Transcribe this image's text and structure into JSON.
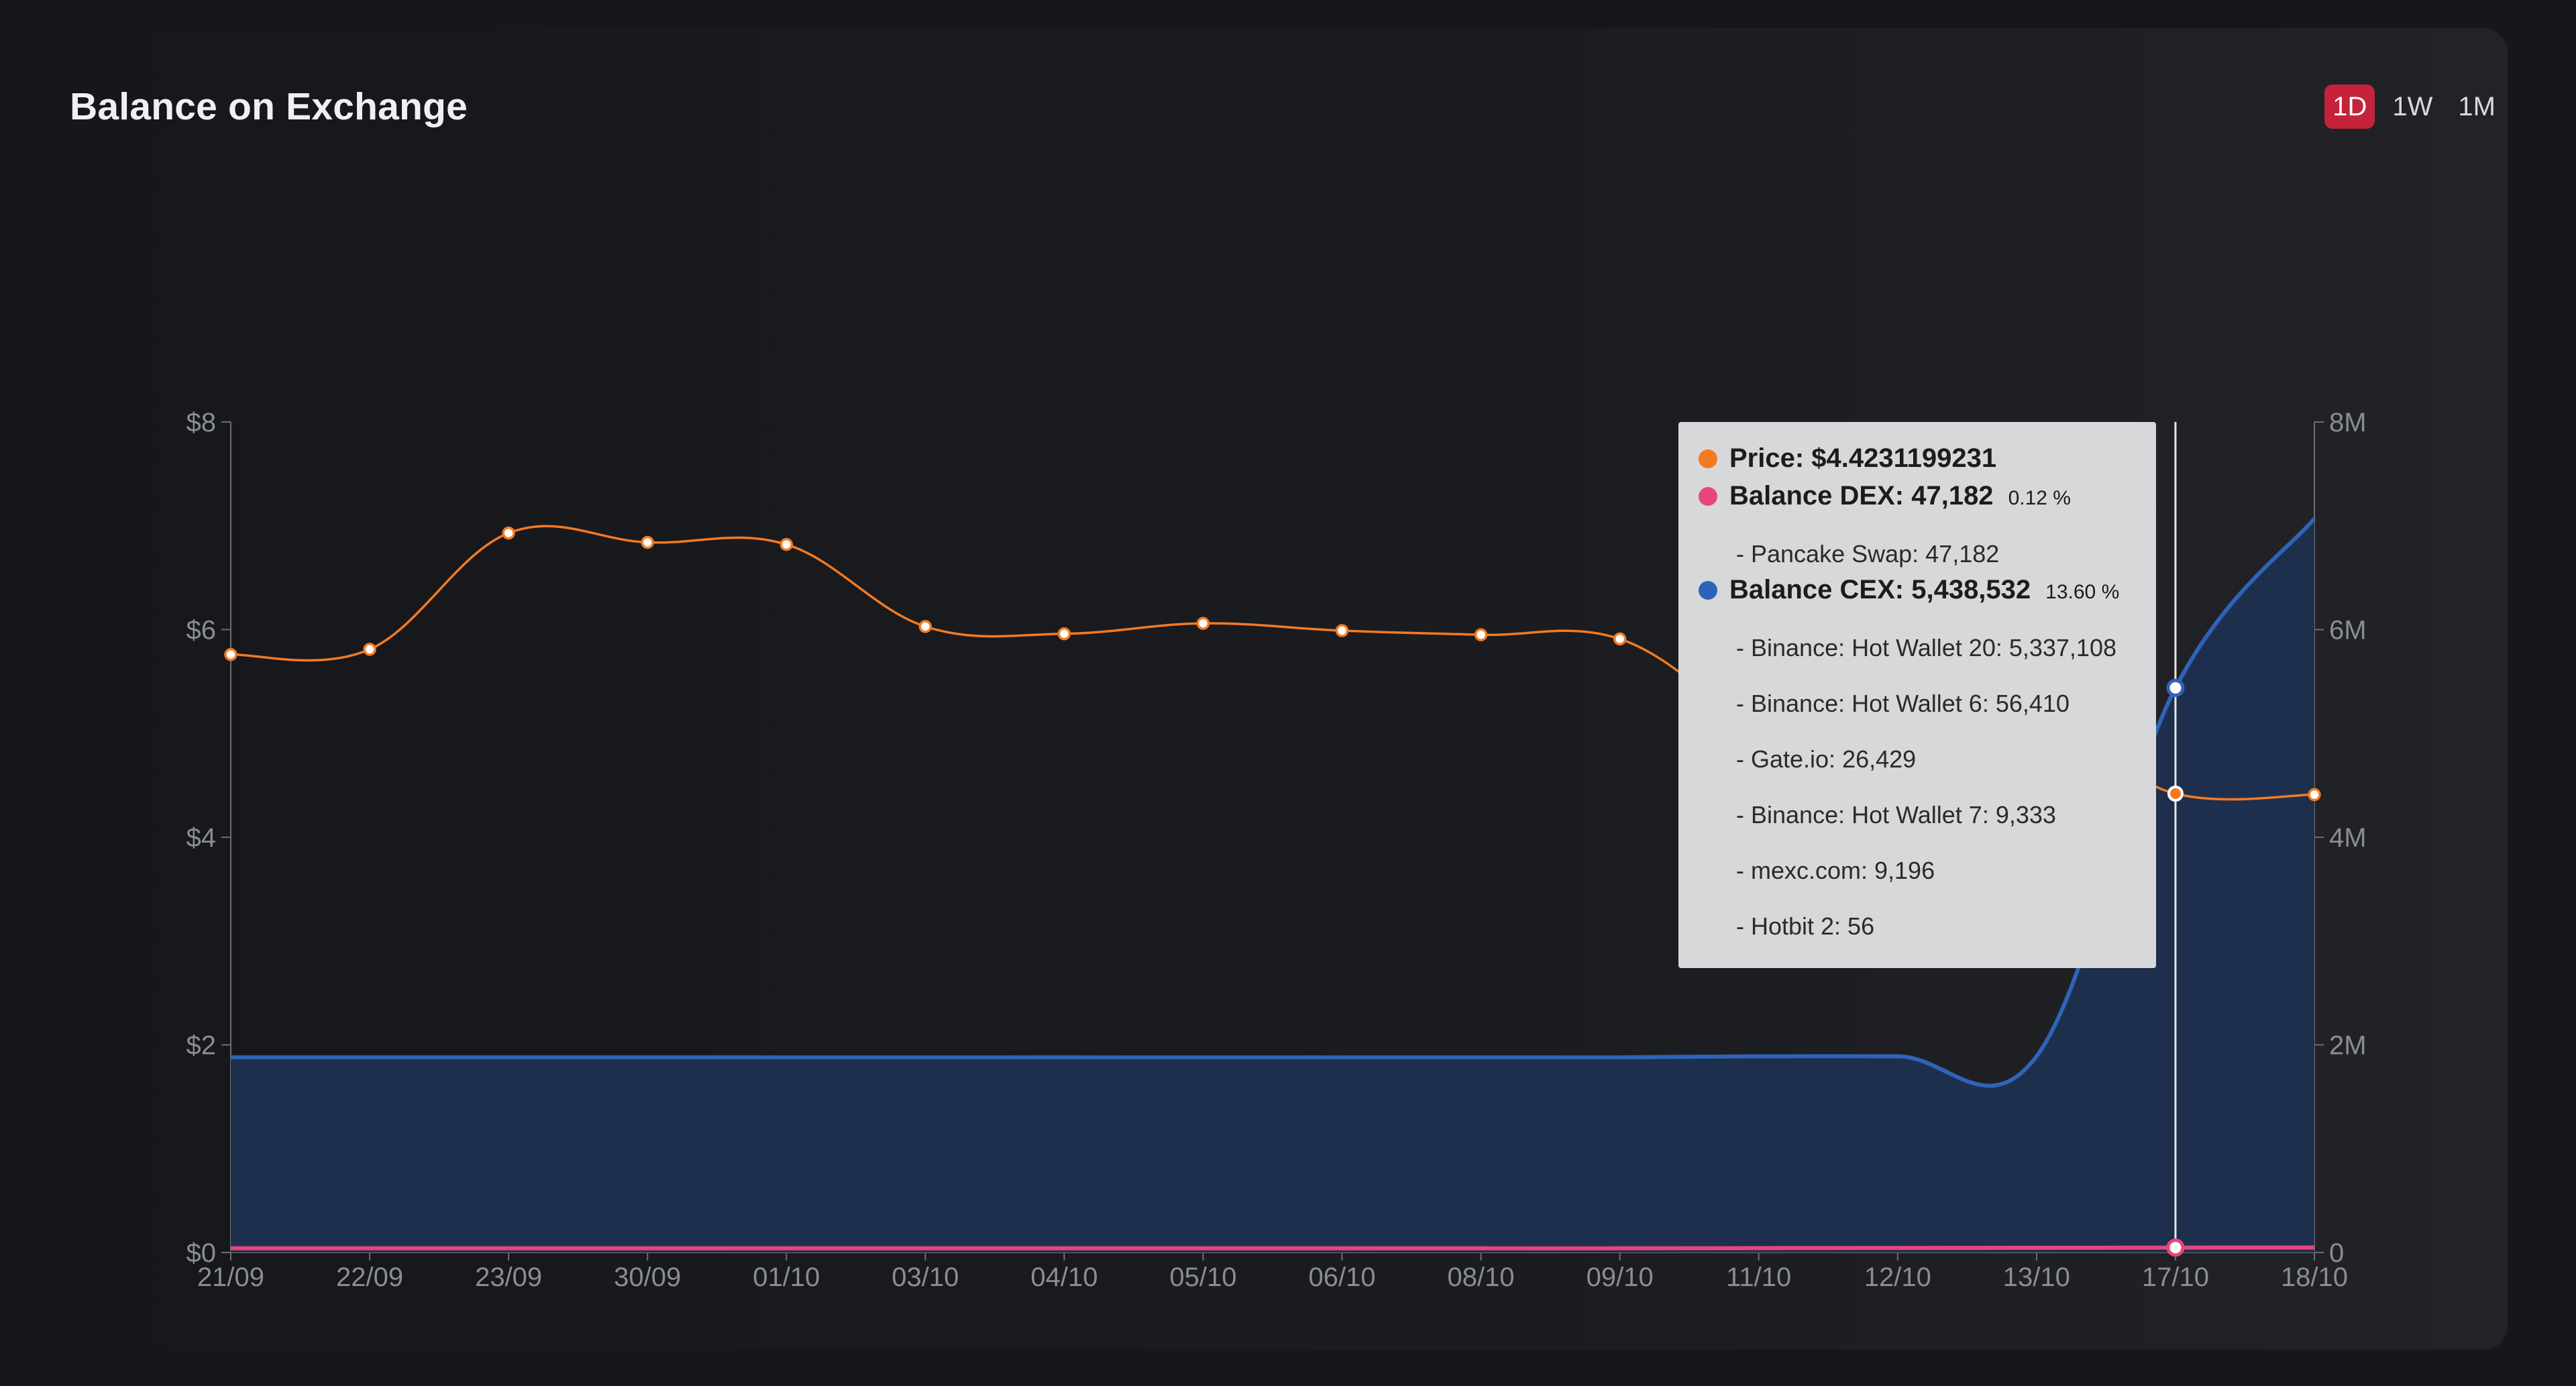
{
  "card": {
    "title": "Balance on Exchange"
  },
  "ranges": [
    {
      "label": "1D",
      "active": true
    },
    {
      "label": "1W",
      "active": false
    },
    {
      "label": "1M",
      "active": false
    }
  ],
  "tooltip": {
    "price": "Price: $4.4231199231",
    "dex": "Balance DEX: 47,182",
    "dex_pct": "0.12 %",
    "dex_sources": [
      "- Pancake Swap: 47,182"
    ],
    "cex": "Balance CEX: 5,438,532",
    "cex_pct": "13.60 %",
    "cex_sources": [
      "- Binance: Hot Wallet 20: 5,337,108",
      "- Binance: Hot Wallet 6: 56,410",
      "- Gate.io: 26,429",
      "- Binance: Hot Wallet 7: 9,333",
      "- mexc.com: 9,196",
      "- Hotbit 2: 56"
    ]
  },
  "colors": {
    "price": "#f47a22",
    "dex": "#e8457a",
    "cex": "#2e64b8",
    "cex_fill": "#1f3050",
    "active_range": "#c4233b"
  },
  "chart_data": {
    "type": "line",
    "x": [
      "21/09",
      "22/09",
      "23/09",
      "30/09",
      "01/10",
      "03/10",
      "04/10",
      "05/10",
      "06/10",
      "08/10",
      "09/10",
      "11/10",
      "12/10",
      "13/10",
      "17/10",
      "18/10"
    ],
    "series": [
      {
        "name": "Price",
        "axis": "left",
        "values": [
          5.76,
          5.81,
          6.93,
          6.84,
          6.82,
          6.03,
          5.96,
          6.06,
          5.99,
          5.95,
          5.91,
          5.07,
          4.57,
          5.07,
          4.42,
          4.41
        ]
      },
      {
        "name": "Balance CEX",
        "axis": "right",
        "values": [
          1880000,
          1880000,
          1880000,
          1880000,
          1880000,
          1880000,
          1880000,
          1880000,
          1880000,
          1880000,
          1880000,
          1890000,
          1890000,
          1890000,
          5438532,
          7070000
        ]
      },
      {
        "name": "Balance DEX",
        "axis": "right",
        "values": [
          40000,
          40000,
          40000,
          40000,
          40000,
          40000,
          40000,
          40000,
          40000,
          40000,
          40000,
          42000,
          44000,
          45000,
          47182,
          48000
        ]
      }
    ],
    "y_left": {
      "ticks": [
        "$0",
        "$2",
        "$4",
        "$6",
        "$8"
      ],
      "range": [
        0,
        8
      ]
    },
    "y_right": {
      "ticks": [
        "0",
        "2M",
        "4M",
        "6M",
        "8M"
      ],
      "range": [
        0,
        8000000
      ]
    },
    "highlight_index": 14
  }
}
